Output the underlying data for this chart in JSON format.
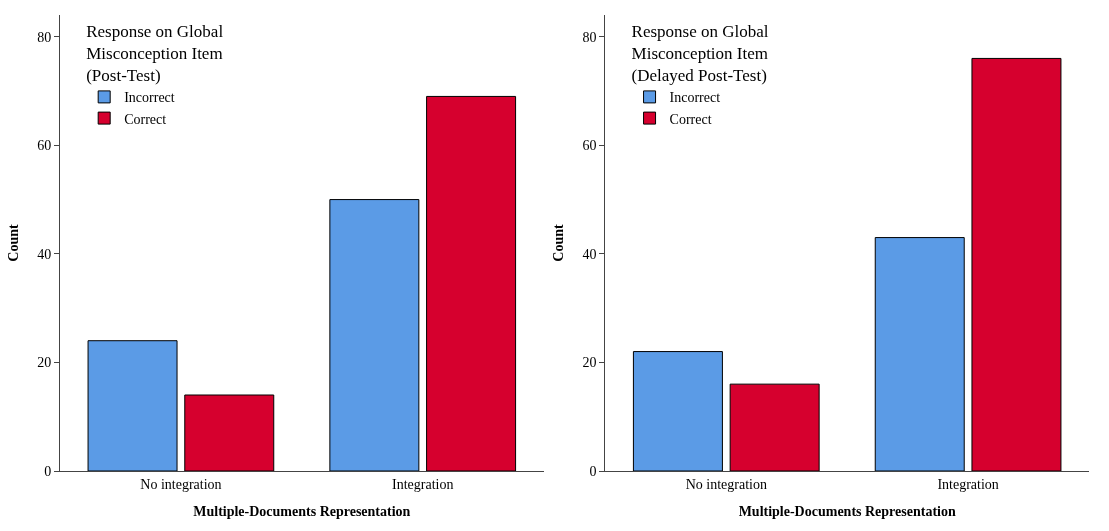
{
  "chart_data": [
    {
      "type": "bar",
      "xlabel": "Multiple-Documents Representation",
      "ylabel": "Count",
      "legend_title": "Response on Global\nMisconception Item\n(Post-Test)",
      "categories": [
        "No integration",
        "Integration"
      ],
      "series": [
        {
          "name": "Incorrect",
          "color": "#5b9be6",
          "values": [
            24,
            50
          ]
        },
        {
          "name": "Correct",
          "color": "#d6002e",
          "values": [
            14,
            69
          ]
        }
      ],
      "ylim": [
        0,
        84
      ],
      "yticks": [
        0,
        20,
        40,
        60,
        80
      ],
      "legend": "top left"
    },
    {
      "type": "bar",
      "xlabel": "Multiple-Documents Representation",
      "ylabel": "Count",
      "legend_title": "Response on Global\nMisconception Item\n(Delayed Post-Test)",
      "categories": [
        "No integration",
        "Integration"
      ],
      "series": [
        {
          "name": "Incorrect",
          "color": "#5b9be6",
          "values": [
            22,
            43
          ]
        },
        {
          "name": "Correct",
          "color": "#d6002e",
          "values": [
            16,
            76
          ]
        }
      ],
      "ylim": [
        0,
        84
      ],
      "yticks": [
        0,
        20,
        40,
        60,
        80
      ],
      "legend": "top left"
    }
  ]
}
